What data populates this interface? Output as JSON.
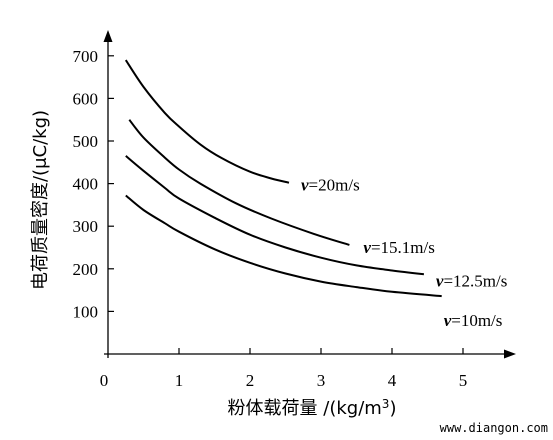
{
  "chart_data": {
    "type": "line",
    "xlabel": "粉体载荷量 /(kg/m³)",
    "ylabel": "电荷质量密度/(μC/kg)",
    "xlim": [
      0,
      5.6
    ],
    "ylim": [
      0,
      790
    ],
    "x_ticks": [
      "0",
      "1",
      "2",
      "3",
      "4",
      "5"
    ],
    "y_ticks": [
      "100",
      "200",
      "300",
      "400",
      "500",
      "600",
      "700"
    ],
    "grid": false,
    "series": [
      {
        "name": "v=20m/s",
        "name_prefix": "v",
        "name_suffix": "=20m/s",
        "x": [
          0.25,
          0.5,
          0.8,
          1.0,
          1.3,
          1.6,
          2.0,
          2.3,
          2.55
        ],
        "y": [
          690,
          627,
          566,
          534,
          492,
          460,
          428,
          412,
          402
        ]
      },
      {
        "name": "v=15.1m/s",
        "name_prefix": "v",
        "name_suffix": "=15.1m/s",
        "x": [
          0.3,
          0.5,
          0.8,
          1.0,
          1.3,
          1.8,
          2.3,
          2.9,
          3.4
        ],
        "y": [
          550,
          508,
          461,
          433,
          400,
          354,
          318,
          282,
          256
        ]
      },
      {
        "name": "v=12.5m/s",
        "name_prefix": "v",
        "name_suffix": "=12.5m/s",
        "x": [
          0.25,
          0.5,
          0.8,
          1.0,
          1.5,
          2.0,
          2.5,
          3.0,
          3.5,
          4.0,
          4.45
        ],
        "y": [
          465,
          430,
          390,
          365,
          320,
          280,
          250,
          226,
          208,
          196,
          187
        ]
      },
      {
        "name": "v=10m/s",
        "name_prefix": "v",
        "name_suffix": "=10m/s",
        "x": [
          0.25,
          0.5,
          0.8,
          1.0,
          1.5,
          2.0,
          2.5,
          3.0,
          3.5,
          4.0,
          4.7
        ],
        "y": [
          372,
          338,
          307,
          287,
          246,
          214,
          189,
          170,
          157,
          146,
          136
        ]
      }
    ]
  },
  "watermark": "www.diangon.com"
}
